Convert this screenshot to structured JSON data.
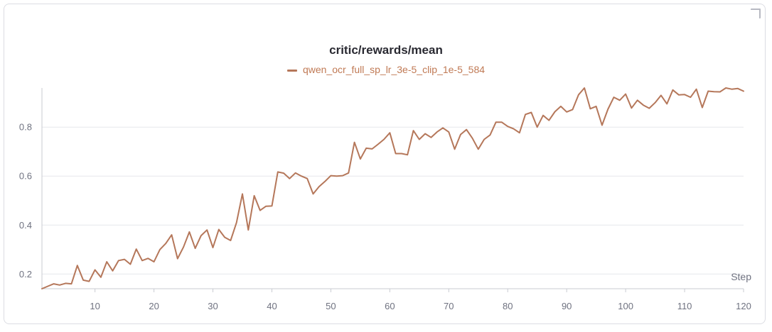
{
  "chart_data": {
    "type": "line",
    "title": "critic/rewards/mean",
    "xlabel": "Step",
    "ylabel": "",
    "xlim": [
      1,
      120
    ],
    "ylim": [
      0.14,
      0.96
    ],
    "xticks": [
      10,
      20,
      30,
      40,
      50,
      60,
      70,
      80,
      90,
      100,
      110,
      120
    ],
    "yticks": [
      0.2,
      0.4,
      0.6,
      0.8
    ],
    "ytick_labels": [
      "0.2",
      "0.4",
      "0.6",
      "0.8"
    ],
    "grid": true,
    "legend_position": "top-center",
    "series": [
      {
        "name": "qwen_ocr_full_sp_lr_3e-5_clip_1e-5_584",
        "color": "#b5775a",
        "x": [
          1,
          2,
          3,
          4,
          5,
          6,
          7,
          8,
          9,
          10,
          11,
          12,
          13,
          14,
          15,
          16,
          17,
          18,
          19,
          20,
          21,
          22,
          23,
          24,
          25,
          26,
          27,
          28,
          29,
          30,
          31,
          32,
          33,
          34,
          35,
          36,
          37,
          38,
          39,
          40,
          41,
          42,
          43,
          44,
          45,
          46,
          47,
          48,
          49,
          50,
          51,
          52,
          53,
          54,
          55,
          56,
          57,
          58,
          59,
          60,
          61,
          62,
          63,
          64,
          65,
          66,
          67,
          68,
          69,
          70,
          71,
          72,
          73,
          74,
          75,
          76,
          77,
          78,
          79,
          80,
          81,
          82,
          83,
          84,
          85,
          86,
          87,
          88,
          89,
          90,
          91,
          92,
          93,
          94,
          95,
          96,
          97,
          98,
          99,
          100,
          101,
          102,
          103,
          104,
          105,
          106,
          107,
          108,
          109,
          110,
          111,
          112,
          113,
          114,
          115,
          116,
          117,
          118,
          119,
          120
        ],
        "y": [
          0.14,
          0.15,
          0.16,
          0.155,
          0.162,
          0.16,
          0.235,
          0.175,
          0.17,
          0.217,
          0.187,
          0.25,
          0.213,
          0.255,
          0.26,
          0.24,
          0.302,
          0.255,
          0.264,
          0.25,
          0.3,
          0.325,
          0.36,
          0.263,
          0.31,
          0.372,
          0.305,
          0.357,
          0.38,
          0.308,
          0.382,
          0.35,
          0.337,
          0.41,
          0.527,
          0.38,
          0.52,
          0.46,
          0.477,
          0.478,
          0.617,
          0.612,
          0.59,
          0.613,
          0.6,
          0.59,
          0.527,
          0.557,
          0.578,
          0.602,
          0.6,
          0.602,
          0.613,
          0.738,
          0.67,
          0.714,
          0.711,
          0.73,
          0.75,
          0.777,
          0.692,
          0.692,
          0.687,
          0.786,
          0.75,
          0.773,
          0.758,
          0.78,
          0.797,
          0.78,
          0.71,
          0.77,
          0.79,
          0.755,
          0.71,
          0.75,
          0.768,
          0.82,
          0.82,
          0.803,
          0.793,
          0.777,
          0.852,
          0.86,
          0.8,
          0.848,
          0.828,
          0.863,
          0.885,
          0.862,
          0.872,
          0.932,
          0.96,
          0.875,
          0.885,
          0.808,
          0.873,
          0.922,
          0.91,
          0.935,
          0.878,
          0.91,
          0.89,
          0.877,
          0.9,
          0.93,
          0.895,
          0.952,
          0.932,
          0.933,
          0.922,
          0.955,
          0.88,
          0.947,
          0.945,
          0.944,
          0.96,
          0.955,
          0.958,
          0.947
        ]
      }
    ]
  }
}
